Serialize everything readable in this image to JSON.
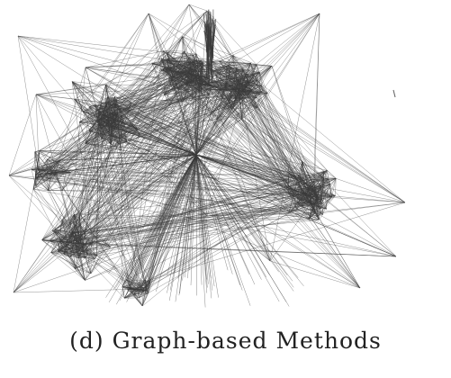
{
  "figure": {
    "caption": "(d) Graph-based Methods",
    "edge_color": "#3a3a3a",
    "background_color": "#ffffff"
  }
}
